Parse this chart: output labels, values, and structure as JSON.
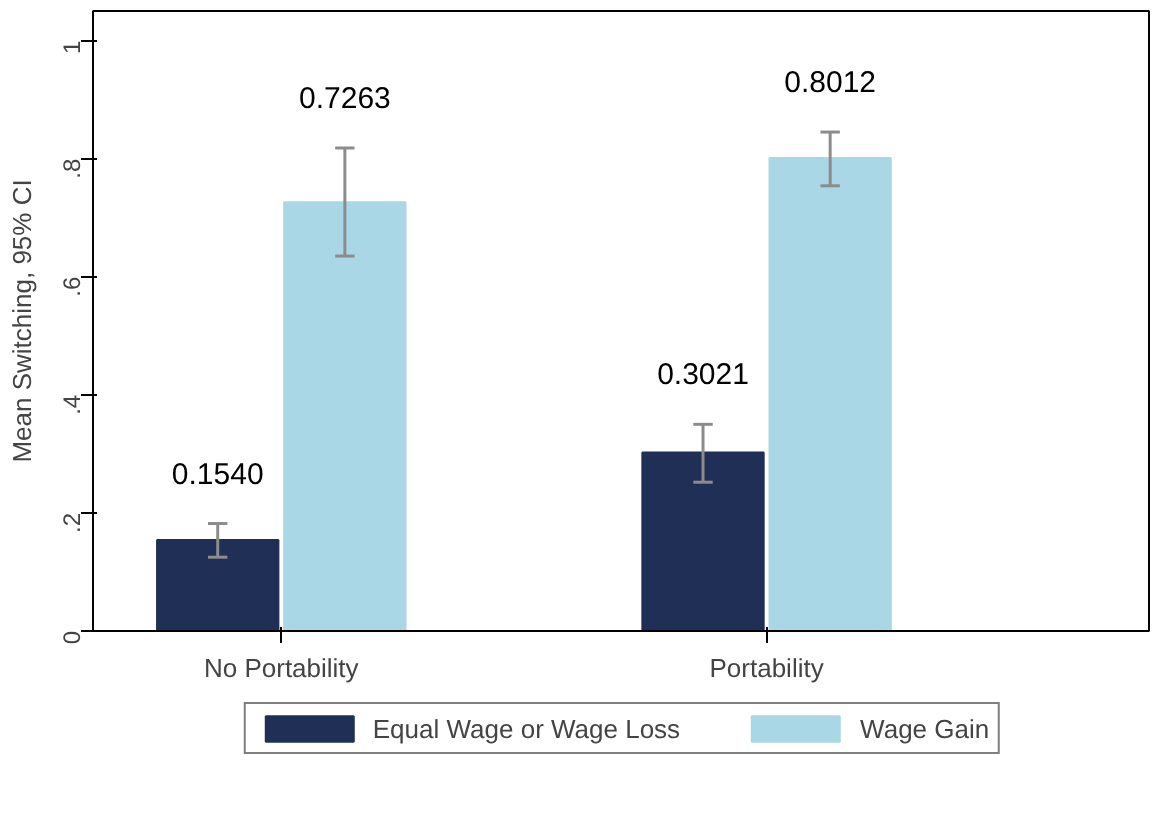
{
  "chart_data": {
    "type": "bar",
    "ylabel": "Mean Switching, 95% CI",
    "categories": [
      "No Portability",
      "Portability"
    ],
    "series": [
      {
        "name": "Equal Wage or Wage Loss",
        "color": "#1f2f56",
        "values": [
          0.154,
          0.3021
        ],
        "value_labels": [
          "0.1540",
          "0.3021"
        ],
        "errors": [
          [
            0.125,
            0.182
          ],
          [
            0.252,
            0.35
          ]
        ]
      },
      {
        "name": "Wage Gain",
        "color": "#a9d7e6",
        "values": [
          0.7263,
          0.8012
        ],
        "value_labels": [
          "0.7263",
          "0.8012"
        ],
        "errors": [
          [
            0.635,
            0.818
          ],
          [
            0.754,
            0.845
          ]
        ]
      }
    ],
    "ylim": [
      0,
      1.05
    ],
    "yticks": [
      {
        "value": 0,
        "label": "0"
      },
      {
        "value": 0.2,
        "label": ".2"
      },
      {
        "value": 0.4,
        "label": ".4"
      },
      {
        "value": 0.6,
        "label": ".6"
      },
      {
        "value": 0.8,
        "label": ".8"
      },
      {
        "value": 1,
        "label": "1"
      }
    ],
    "grid": false,
    "legend": "bottom"
  }
}
